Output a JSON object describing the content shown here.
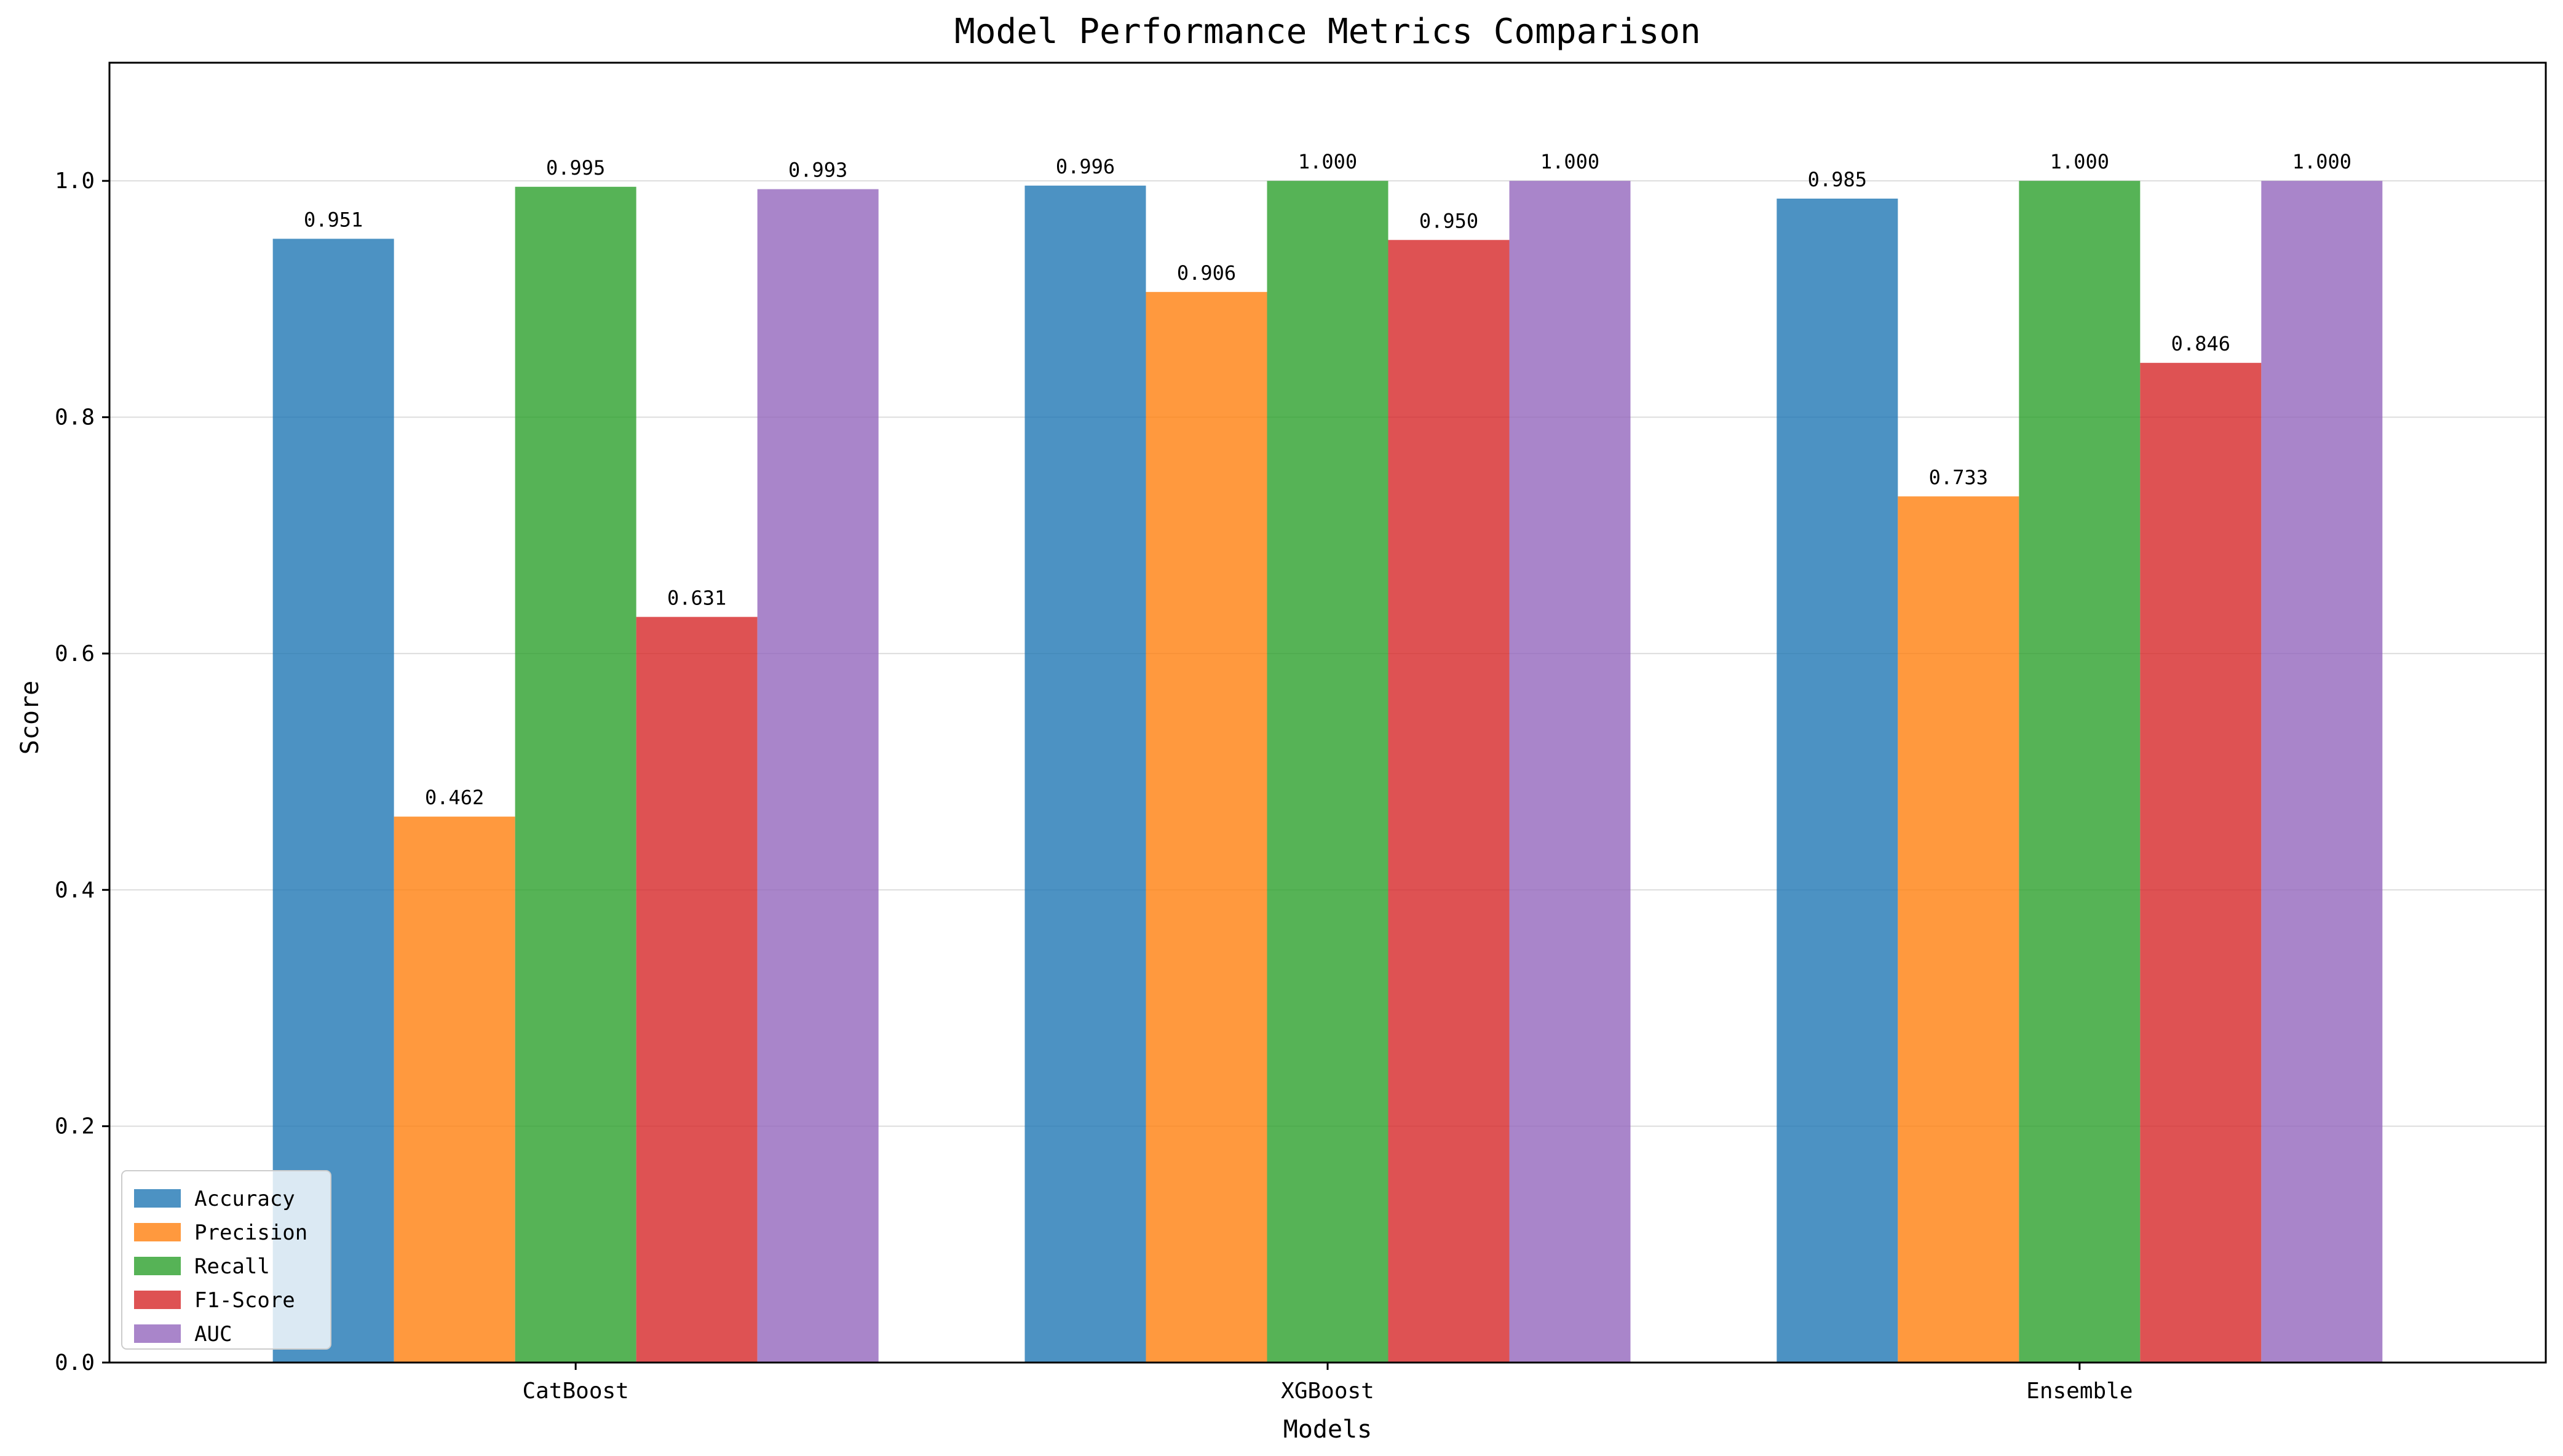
{
  "chart_data": {
    "type": "bar",
    "title": "Model Performance Metrics Comparison",
    "xlabel": "Models",
    "ylabel": "Score",
    "categories": [
      "CatBoost",
      "XGBoost",
      "Ensemble"
    ],
    "series": [
      {
        "name": "Accuracy",
        "color": "#1f77b4",
        "values": [
          0.951,
          0.996,
          0.985
        ],
        "labels": [
          "0.951",
          "0.996",
          "0.985"
        ]
      },
      {
        "name": "Precision",
        "color": "#ff7f0e",
        "values": [
          0.462,
          0.906,
          0.733
        ],
        "labels": [
          "0.462",
          "0.906",
          "0.733"
        ]
      },
      {
        "name": "Recall",
        "color": "#2ca02c",
        "values": [
          0.995,
          1.0,
          1.0
        ],
        "labels": [
          "0.995",
          "1.000",
          "1.000"
        ]
      },
      {
        "name": "F1-Score",
        "color": "#d62728",
        "values": [
          0.631,
          0.95,
          0.846
        ],
        "labels": [
          "0.631",
          "0.950",
          "0.846"
        ]
      },
      {
        "name": "AUC",
        "color": "#9467bd",
        "values": [
          0.993,
          1.0,
          1.0
        ],
        "labels": [
          "0.993",
          "1.000",
          "1.000"
        ]
      }
    ],
    "ylim": [
      0,
      1.1
    ],
    "yticks": [
      0.0,
      0.2,
      0.4,
      0.6,
      0.8,
      1.0
    ],
    "ytick_labels": [
      "0.0",
      "0.2",
      "0.4",
      "0.6",
      "0.8",
      "1.0"
    ],
    "grid": true,
    "legend_position": "lower-left",
    "bar_opacity": 0.8
  }
}
